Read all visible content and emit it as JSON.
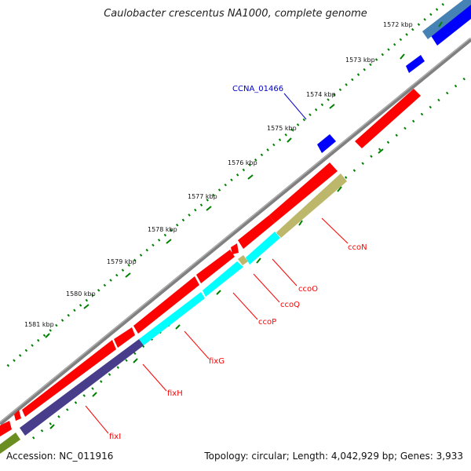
{
  "title": "Caulobacter crescentus NA1000, complete genome",
  "footer": {
    "accession": "Accession: NC_011916",
    "summary": "Topology: circular; Length: 4,042,929 bp; Genes: 3,933"
  },
  "ticks": [
    "1572 kbp",
    "1573 kbp",
    "1574 kbp",
    "1575 kbp",
    "1576 kbp",
    "1577 kbp",
    "1578 kbp",
    "1579 kbp",
    "1580 kbp",
    "1581 kbp"
  ],
  "gene_labels": {
    "ccna": "CCNA_01466",
    "ccoN": "ccoN",
    "ccoO": "ccoO",
    "ccoQ": "ccoQ",
    "ccoP": "ccoP",
    "fixG": "fixG",
    "fixH": "fixH",
    "fixI": "fixI"
  },
  "colors": {
    "forward": "#ff0000",
    "reverse": "#0000ff",
    "ccoN": "#bdb76b",
    "cco": "#00ffff",
    "fixI": "#483d8b",
    "track_green": "#6b8e23",
    "top_steel": "#4682b4",
    "backbone": "#808080",
    "ticks": "#008000",
    "label_red": "#ff0000",
    "label_blue": "#0000cc"
  }
}
